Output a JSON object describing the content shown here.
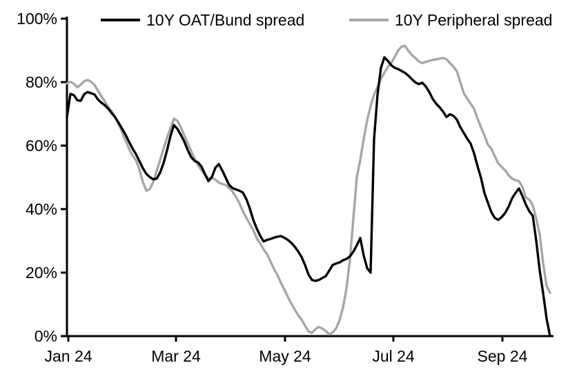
{
  "chart_data": {
    "type": "line",
    "title": "",
    "xlabel": "",
    "ylabel": "",
    "x_tick_labels": [
      "Jan 24",
      "Mar 24",
      "May 24",
      "Jul 24",
      "Sep 24"
    ],
    "y_tick_labels": [
      "0%",
      "20%",
      "40%",
      "60%",
      "80%",
      "100%"
    ],
    "y_tick_values": [
      0,
      20,
      40,
      60,
      80,
      100
    ],
    "ylim": [
      0,
      100
    ],
    "grid": "off",
    "legend_position": "top",
    "axis_color": "#000000",
    "series": [
      {
        "name": "10Y OAT/Bund spread",
        "color": "#000000",
        "values": [
          69,
          76.3,
          75.9,
          74.3,
          74.1,
          76.2,
          76.9,
          76.5,
          76.1,
          74.5,
          73.5,
          72.7,
          71.6,
          70.2,
          68.9,
          67.1,
          65.3,
          63.4,
          61.2,
          59.1,
          57.3,
          55.1,
          52.9,
          51.1,
          50.1,
          49.4,
          49.6,
          51.5,
          54.5,
          58.5,
          63,
          66.5,
          65.3,
          63.4,
          61.3,
          58.6,
          56.4,
          55.2,
          54.7,
          53.4,
          51,
          48.8,
          50.1,
          53,
          54.2,
          52.2,
          49.9,
          47.6,
          46.6,
          46.2,
          45.8,
          45.2,
          43.1,
          40.2,
          36.6,
          33.9,
          31.6,
          29.8,
          30.3,
          30.6,
          31,
          31.3,
          31.5,
          31,
          30.3,
          29.4,
          28.2,
          26.7,
          24.9,
          22.4,
          19.4,
          17.7,
          17.4,
          17.7,
          18.3,
          18.9,
          20.6,
          22.4,
          22.9,
          23.2,
          23.9,
          24.3,
          25.1,
          26.6,
          28.6,
          30.9,
          25.4,
          21.4,
          20,
          62,
          76,
          84.5,
          87.8,
          86.7,
          85.3,
          84.5,
          84.1,
          83.5,
          82.9,
          82,
          80.9,
          79.9,
          79.4,
          79.8,
          78.6,
          76.9,
          74.7,
          73.2,
          72.1,
          70.7,
          69,
          69.9,
          69.4,
          68.2,
          65.8,
          64,
          62.2,
          60.6,
          57.5,
          53.5,
          49.8,
          45,
          42,
          39,
          37.2,
          36.6,
          37.5,
          38.8,
          40.8,
          43.4,
          45.1,
          46.5,
          44.1,
          41.4,
          39.3,
          37.9,
          30,
          20.7,
          13.5,
          5.5,
          0
        ]
      },
      {
        "name": "10Y Peripheral spread",
        "color": "#a6a6a6",
        "values": [
          79.6,
          80.1,
          79.5,
          78.4,
          79.2,
          80.3,
          80.7,
          80.1,
          79.1,
          77.3,
          75.5,
          73.9,
          72.1,
          70.8,
          68.9,
          66.8,
          64.2,
          61.6,
          59,
          56.9,
          55.4,
          52.5,
          48.5,
          45.8,
          46.3,
          48.5,
          52,
          55.5,
          59,
          62.5,
          65.5,
          68.5,
          67.8,
          65.8,
          63.2,
          60.8,
          58.3,
          55.9,
          53.8,
          52.3,
          50.8,
          49.6,
          49.9,
          49.3,
          48.4,
          47.9,
          47.6,
          46.6,
          45.5,
          43.8,
          41.8,
          39.3,
          37.2,
          35.3,
          33.4,
          30.9,
          29.2,
          27.3,
          25.8,
          23.5,
          21.2,
          19.2,
          16.8,
          14.7,
          12.4,
          10.3,
          8.4,
          6.6,
          5.2,
          3.3,
          1.5,
          1,
          2.2,
          2.9,
          2.4,
          1.6,
          0.5,
          1.2,
          2.4,
          5,
          9,
          15,
          24,
          37,
          50,
          55.5,
          62,
          68,
          72.5,
          76,
          78.5,
          81,
          83,
          84.8,
          86,
          88,
          90,
          91.2,
          91.4,
          89.8,
          88.5,
          87.6,
          86.5,
          86,
          86.4,
          86.7,
          87,
          87.2,
          87.4,
          87.6,
          87.2,
          86,
          84.9,
          83.4,
          80,
          76.5,
          74.8,
          73.2,
          71.5,
          68.5,
          65.7,
          63.2,
          60.3,
          59,
          56.6,
          54.4,
          53.3,
          52.2,
          50.7,
          49.6,
          49.1,
          48.8,
          47,
          43.6,
          43,
          41.2,
          37,
          32,
          23,
          15.8,
          13.6
        ]
      }
    ]
  }
}
